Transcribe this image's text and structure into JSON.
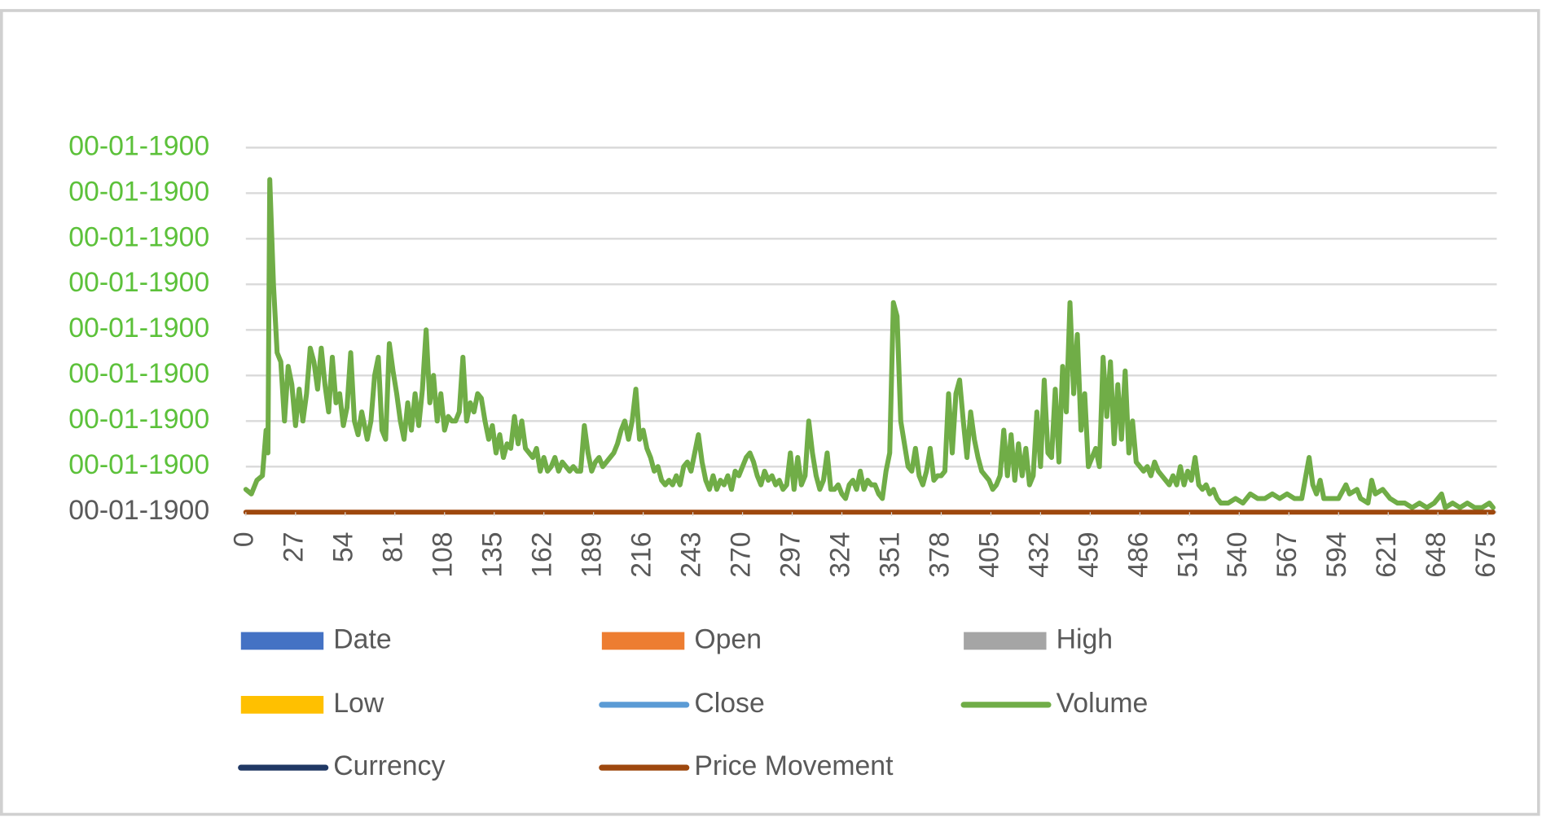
{
  "chart_data": {
    "type": "line",
    "xlim": [
      0,
      680
    ],
    "xticks": [
      0,
      27,
      54,
      81,
      108,
      135,
      162,
      189,
      216,
      243,
      270,
      297,
      324,
      351,
      378,
      405,
      432,
      459,
      486,
      513,
      540,
      567,
      594,
      621,
      648,
      675
    ],
    "ylim": [
      0,
      8
    ],
    "yticks": [
      {
        "value": 0,
        "label": "00-01-1900"
      },
      {
        "value": 1,
        "label": "00-01-1900"
      },
      {
        "value": 2,
        "label": "00-01-1900"
      },
      {
        "value": 3,
        "label": "00-01-1900"
      },
      {
        "value": 4,
        "label": "00-01-1900"
      },
      {
        "value": 5,
        "label": "00-01-1900"
      },
      {
        "value": 6,
        "label": "00-01-1900"
      },
      {
        "value": 7,
        "label": "00-01-1900"
      },
      {
        "value": 8,
        "label": "00-01-1900"
      }
    ],
    "ytick_colors": [
      "#595959",
      "#5cc13a",
      "#5cc13a",
      "#5cc13a",
      "#5cc13a",
      "#5cc13a",
      "#5cc13a",
      "#5cc13a",
      "#5cc13a"
    ],
    "grid": true,
    "legend": "bottom",
    "series": [
      {
        "name": "Date",
        "color": "#4472c4",
        "marker": "rect"
      },
      {
        "name": "Open",
        "color": "#ed7d31",
        "marker": "rect"
      },
      {
        "name": "High",
        "color": "#a5a5a5",
        "marker": "rect"
      },
      {
        "name": "Low",
        "color": "#ffc000",
        "marker": "rect"
      },
      {
        "name": "Close",
        "color": "#5b9bd5",
        "marker": "line"
      },
      {
        "name": "Volume",
        "color": "#70ad47",
        "marker": "line",
        "x": [
          0,
          3,
          6,
          9,
          11,
          12,
          13,
          15,
          17,
          19,
          21,
          23,
          25,
          27,
          29,
          31,
          33,
          35,
          37,
          39,
          41,
          43,
          45,
          47,
          49,
          51,
          53,
          55,
          57,
          59,
          61,
          63,
          66,
          68,
          70,
          72,
          74,
          76,
          78,
          80,
          82,
          84,
          86,
          88,
          90,
          92,
          94,
          96,
          98,
          100,
          102,
          104,
          106,
          108,
          110,
          112,
          114,
          116,
          118,
          120,
          122,
          124,
          126,
          128,
          130,
          132,
          134,
          136,
          138,
          140,
          142,
          144,
          146,
          148,
          150,
          152,
          154,
          156,
          158,
          160,
          162,
          164,
          166,
          168,
          170,
          172,
          174,
          176,
          178,
          180,
          182,
          184,
          186,
          188,
          190,
          192,
          194,
          196,
          198,
          200,
          202,
          204,
          206,
          208,
          210,
          212,
          214,
          216,
          218,
          220,
          222,
          224,
          226,
          228,
          230,
          232,
          234,
          236,
          238,
          240,
          242,
          244,
          246,
          248,
          250,
          252,
          254,
          256,
          258,
          260,
          262,
          264,
          266,
          268,
          270,
          272,
          274,
          276,
          278,
          280,
          282,
          284,
          286,
          288,
          290,
          292,
          294,
          296,
          298,
          300,
          302,
          304,
          306,
          308,
          310,
          312,
          314,
          316,
          318,
          320,
          322,
          324,
          326,
          328,
          330,
          332,
          334,
          336,
          338,
          340,
          342,
          344,
          346,
          348,
          350,
          352,
          354,
          356,
          358,
          360,
          362,
          364,
          366,
          368,
          370,
          372,
          374,
          376,
          378,
          380,
          382,
          384,
          386,
          388,
          390,
          392,
          394,
          396,
          398,
          400,
          402,
          404,
          406,
          408,
          410,
          412,
          414,
          416,
          418,
          420,
          422,
          424,
          426,
          428,
          430,
          432,
          434,
          436,
          438,
          440,
          442,
          444,
          446,
          448,
          450,
          452,
          454,
          456,
          458,
          460,
          462,
          464,
          466,
          468,
          470,
          472,
          474,
          476,
          478,
          480,
          482,
          484,
          486,
          488,
          490,
          492,
          494,
          496,
          498,
          500,
          502,
          504,
          506,
          508,
          510,
          512,
          514,
          516,
          518,
          520,
          522,
          524,
          526,
          528,
          530,
          534,
          538,
          542,
          546,
          550,
          554,
          558,
          562,
          566,
          570,
          574,
          578,
          580,
          582,
          584,
          586,
          590,
          594,
          598,
          600,
          604,
          606,
          610,
          612,
          614,
          618,
          622,
          626,
          630,
          634,
          638,
          642,
          646,
          650,
          652,
          656,
          660,
          664,
          668,
          672,
          676,
          678
        ],
        "values": [
          0.5,
          0.4,
          0.7,
          0.8,
          1.8,
          1.3,
          7.3,
          5.0,
          3.5,
          3.3,
          2.0,
          3.2,
          2.8,
          1.9,
          2.7,
          2.0,
          2.6,
          3.6,
          3.3,
          2.7,
          3.6,
          2.8,
          2.2,
          3.4,
          2.4,
          2.6,
          1.9,
          2.3,
          3.5,
          2.0,
          1.7,
          2.2,
          1.6,
          2.0,
          3.0,
          3.4,
          1.8,
          1.6,
          3.7,
          3.1,
          2.6,
          2.0,
          1.6,
          2.4,
          1.8,
          2.6,
          1.9,
          2.7,
          4.0,
          2.4,
          3.0,
          2.0,
          2.6,
          1.8,
          2.1,
          2.0,
          2.0,
          2.2,
          3.4,
          2.0,
          2.4,
          2.2,
          2.6,
          2.5,
          2.0,
          1.6,
          1.9,
          1.3,
          1.7,
          1.2,
          1.5,
          1.4,
          2.1,
          1.5,
          2.0,
          1.4,
          1.3,
          1.2,
          1.4,
          0.9,
          1.2,
          0.9,
          1.0,
          1.2,
          0.9,
          1.1,
          1.0,
          0.9,
          1.0,
          0.9,
          0.9,
          1.9,
          1.3,
          0.9,
          1.1,
          1.2,
          1.0,
          1.1,
          1.2,
          1.3,
          1.5,
          1.8,
          2.0,
          1.6,
          2.0,
          2.7,
          1.6,
          1.8,
          1.4,
          1.2,
          0.9,
          1.0,
          0.7,
          0.6,
          0.7,
          0.6,
          0.8,
          0.6,
          1.0,
          1.1,
          0.9,
          1.3,
          1.7,
          1.1,
          0.7,
          0.5,
          0.8,
          0.5,
          0.7,
          0.6,
          0.8,
          0.5,
          0.9,
          0.8,
          1.0,
          1.2,
          1.3,
          1.1,
          0.8,
          0.6,
          0.9,
          0.7,
          0.8,
          0.6,
          0.7,
          0.5,
          0.6,
          1.3,
          0.5,
          1.2,
          0.6,
          0.8,
          2.0,
          1.3,
          0.8,
          0.5,
          0.7,
          1.3,
          0.5,
          0.5,
          0.6,
          0.4,
          0.3,
          0.6,
          0.7,
          0.5,
          0.9,
          0.5,
          0.7,
          0.6,
          0.6,
          0.4,
          0.3,
          0.9,
          1.3,
          4.6,
          4.3,
          2.0,
          1.5,
          1.0,
          0.9,
          1.4,
          0.8,
          0.6,
          0.9,
          1.4,
          0.7,
          0.8,
          0.8,
          0.9,
          2.6,
          1.3,
          2.6,
          2.9,
          2.0,
          1.2,
          2.2,
          1.6,
          1.2,
          0.9,
          0.8,
          0.7,
          0.5,
          0.6,
          0.8,
          1.8,
          0.8,
          1.7,
          0.7,
          1.5,
          0.8,
          1.4,
          0.6,
          0.8,
          2.2,
          1.0,
          2.9,
          1.3,
          1.2,
          2.7,
          1.1,
          3.2,
          2.2,
          4.6,
          2.6,
          3.9,
          1.8,
          2.6,
          1.0,
          1.2,
          1.4,
          1.0,
          3.4,
          2.1,
          3.3,
          1.5,
          2.8,
          1.6,
          3.1,
          1.3,
          2.0,
          1.1,
          1.0,
          0.9,
          1.0,
          0.8,
          1.1,
          0.9,
          0.8,
          0.7,
          0.6,
          0.8,
          0.6,
          1.0,
          0.6,
          0.9,
          0.7,
          1.2,
          0.6,
          0.5,
          0.6,
          0.4,
          0.5,
          0.3,
          0.2,
          0.2,
          0.3,
          0.2,
          0.4,
          0.3,
          0.3,
          0.4,
          0.3,
          0.4,
          0.3,
          0.3,
          1.2,
          0.6,
          0.4,
          0.7,
          0.3,
          0.3,
          0.3,
          0.6,
          0.4,
          0.5,
          0.3,
          0.2,
          0.7,
          0.4,
          0.5,
          0.3,
          0.2,
          0.2,
          0.1,
          0.2,
          0.1,
          0.2,
          0.4,
          0.1,
          0.2,
          0.1,
          0.2,
          0.1,
          0.1,
          0.2,
          0.1
        ]
      },
      {
        "name": "Currency",
        "color": "#203864",
        "marker": "line"
      },
      {
        "name": "Price Movement",
        "color": "#9e480e",
        "marker": "line",
        "x": [
          0,
          678
        ],
        "values": [
          0,
          0
        ]
      }
    ]
  }
}
